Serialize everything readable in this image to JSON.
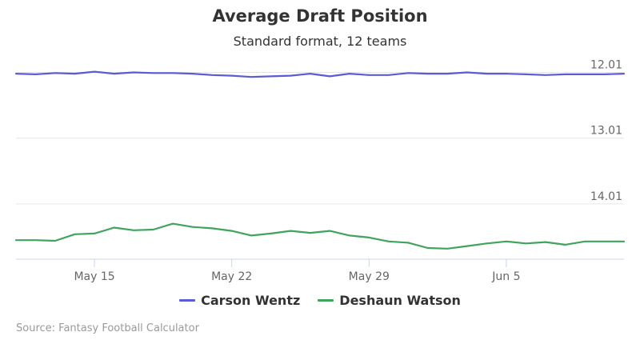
{
  "chart_data": {
    "type": "line",
    "title": "Average Draft Position",
    "subtitle": "Standard format, 12 teams",
    "xlabel": "",
    "ylabel": "",
    "x_tick_labels": [
      "May 15",
      "May 22",
      "May 29",
      "Jun 5"
    ],
    "y_tick_labels": [
      "12.01",
      "13.01",
      "14.01"
    ],
    "y_reversed": true,
    "ylim": [
      11.98,
      14.85
    ],
    "xlim": [
      "May 11",
      "Jun 11"
    ],
    "grid": true,
    "legend_position": "bottom",
    "x": [
      "May 11",
      "May 12",
      "May 13",
      "May 14",
      "May 15",
      "May 16",
      "May 17",
      "May 18",
      "May 19",
      "May 20",
      "May 21",
      "May 22",
      "May 23",
      "May 24",
      "May 25",
      "May 26",
      "May 27",
      "May 28",
      "May 29",
      "May 30",
      "May 31",
      "Jun 1",
      "Jun 2",
      "Jun 3",
      "Jun 4",
      "Jun 5",
      "Jun 6",
      "Jun 7",
      "Jun 8",
      "Jun 9",
      "Jun 10",
      "Jun 11"
    ],
    "series": [
      {
        "name": "Carson Wentz",
        "color": "#5b5bd6",
        "values": [
          12.03,
          12.04,
          12.02,
          12.03,
          12.0,
          12.03,
          12.01,
          12.02,
          12.02,
          12.03,
          12.05,
          12.06,
          12.08,
          12.07,
          12.06,
          12.03,
          12.07,
          12.03,
          12.05,
          12.05,
          12.02,
          12.03,
          12.03,
          12.01,
          12.03,
          12.03,
          12.04,
          12.05,
          12.04,
          12.04,
          12.04,
          12.03
        ]
      },
      {
        "name": "Deshaun Watson",
        "color": "#3fa45c",
        "values": [
          14.56,
          14.56,
          14.57,
          14.47,
          14.46,
          14.37,
          14.41,
          14.4,
          14.31,
          14.36,
          14.38,
          14.42,
          14.49,
          14.46,
          14.42,
          14.45,
          14.42,
          14.49,
          14.52,
          14.58,
          14.6,
          14.68,
          14.69,
          14.65,
          14.61,
          14.58,
          14.61,
          14.59,
          14.63,
          14.58,
          14.58,
          14.58
        ]
      }
    ]
  },
  "legend": {
    "items": [
      {
        "label": "Carson Wentz",
        "color": "#5b5bd6"
      },
      {
        "label": "Deshaun Watson",
        "color": "#3fa45c"
      }
    ]
  },
  "credits": "Source: Fantasy Football Calculator"
}
